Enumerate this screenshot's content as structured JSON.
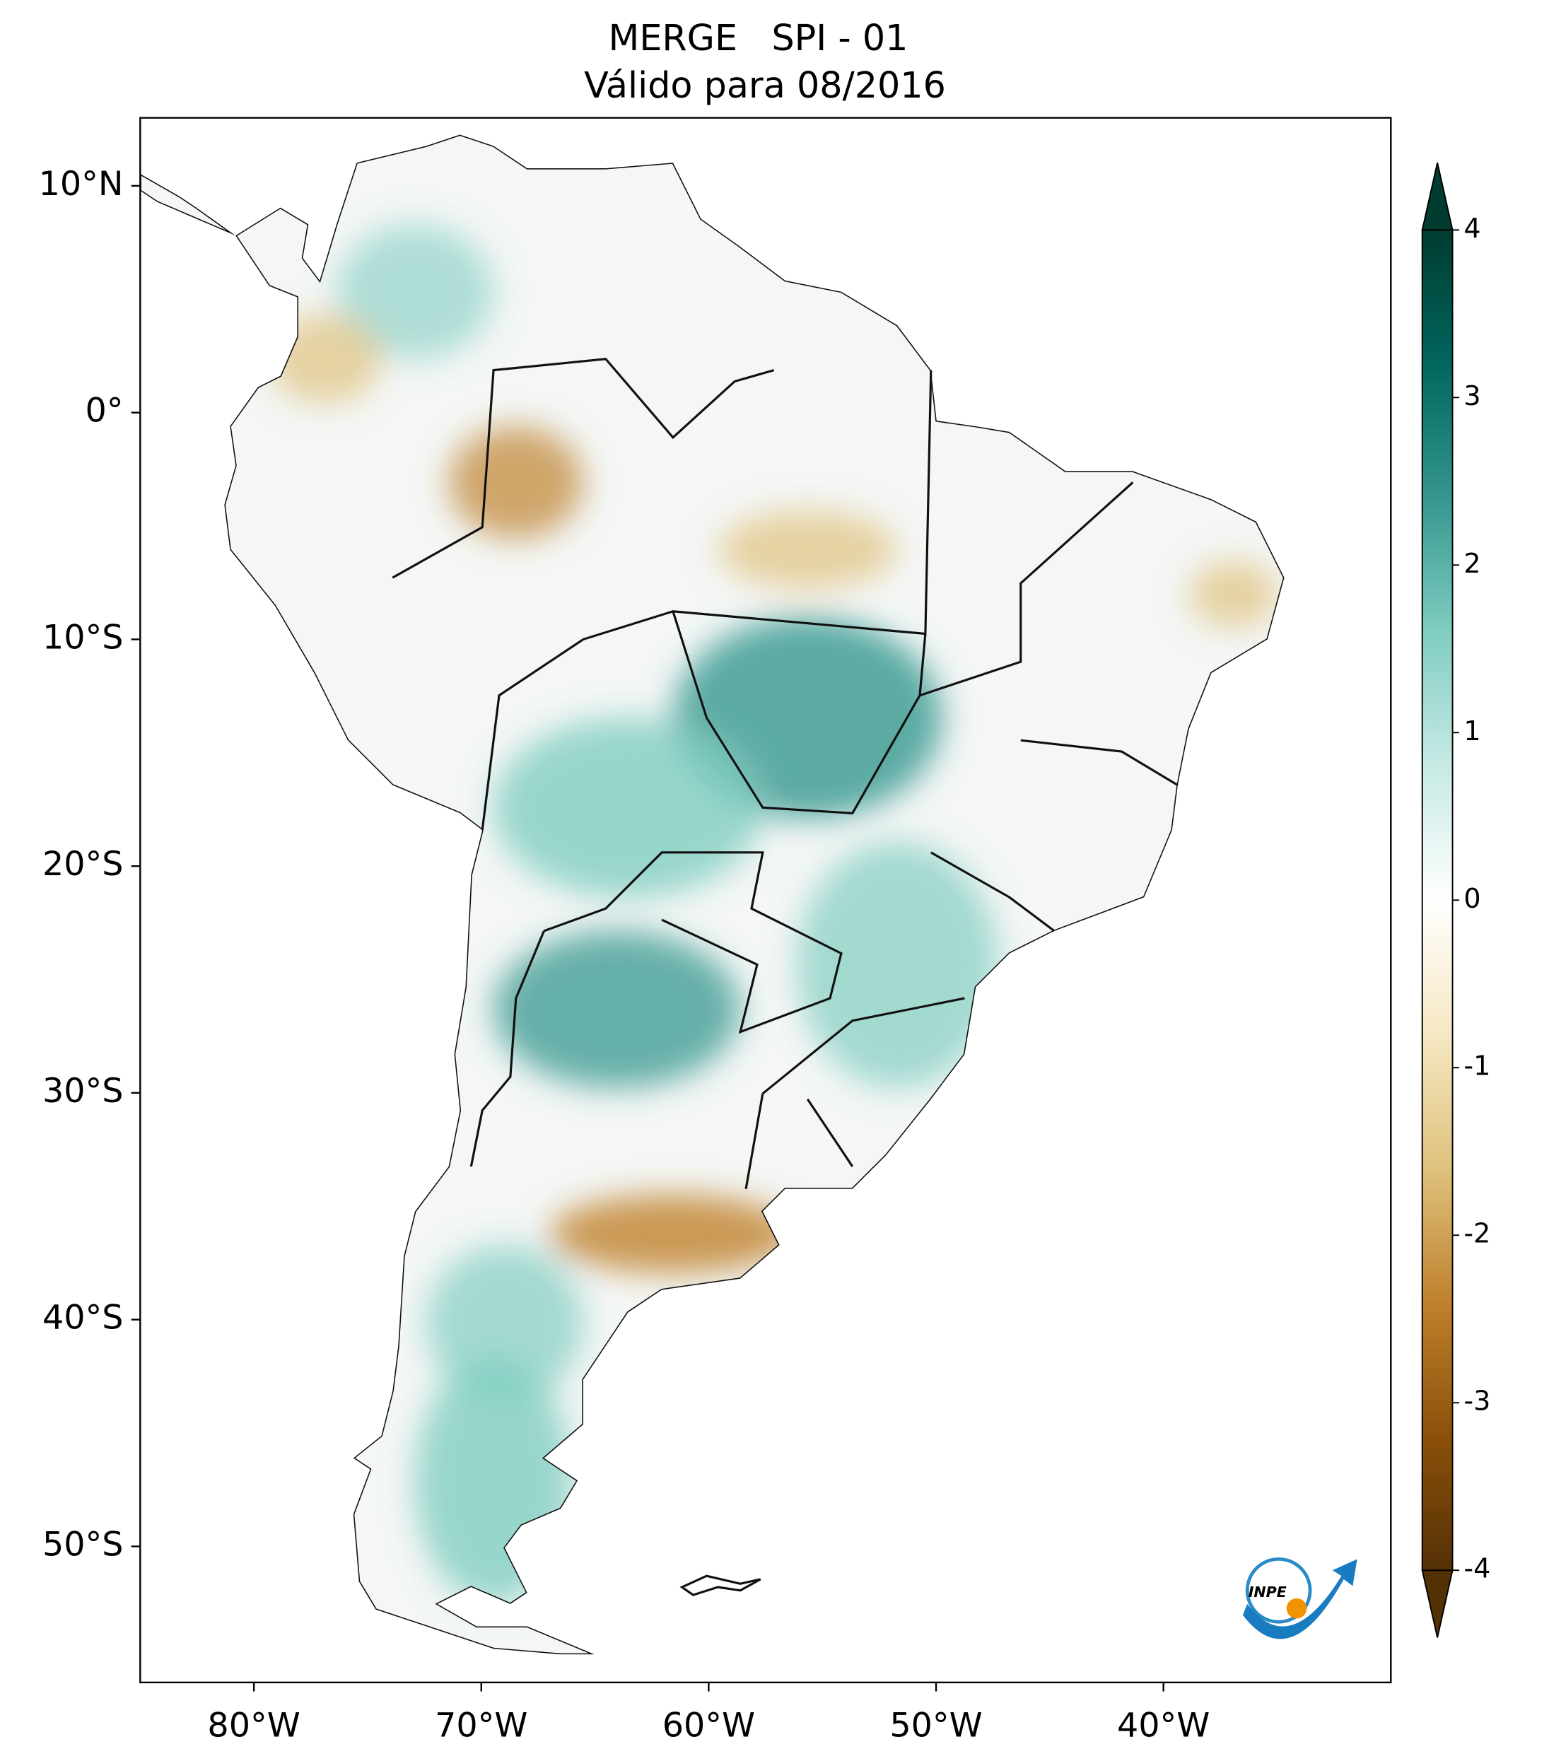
{
  "chart_data": {
    "type": "map",
    "title": "MERGE   SPI - 01",
    "subtitle": "Válido para 08/2016",
    "xlim": [
      -85,
      -30
    ],
    "ylim": [
      -56,
      13
    ],
    "xticks": [
      {
        "value": -80,
        "label": "80°W"
      },
      {
        "value": -70,
        "label": "70°W"
      },
      {
        "value": -60,
        "label": "60°W"
      },
      {
        "value": -50,
        "label": "50°W"
      },
      {
        "value": -40,
        "label": "40°W"
      }
    ],
    "yticks": [
      {
        "value": 10,
        "label": "10°N"
      },
      {
        "value": 0,
        "label": "0°"
      },
      {
        "value": -10,
        "label": "10°S"
      },
      {
        "value": -20,
        "label": "20°S"
      },
      {
        "value": -30,
        "label": "30°S"
      },
      {
        "value": -40,
        "label": "40°S"
      },
      {
        "value": -50,
        "label": "50°S"
      }
    ],
    "colorbar": {
      "clim": [
        -4,
        4
      ],
      "ticks": [
        -4,
        -3,
        -2,
        -1,
        0,
        1,
        2,
        3,
        4
      ],
      "colors": [
        "#543005",
        "#8c510a",
        "#bf812d",
        "#dfc27d",
        "#f6e8c3",
        "#ffffff",
        "#c7eae5",
        "#80cdc1",
        "#35978f",
        "#01665e",
        "#003c30"
      ]
    },
    "logo_text": "INPE"
  }
}
